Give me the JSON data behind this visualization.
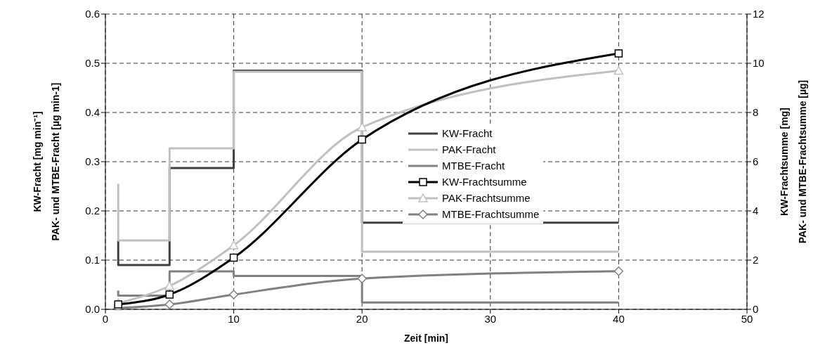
{
  "chart_data": {
    "type": "line",
    "xlabel": "Zeit [min]",
    "ylabel": "KW-Fracht  [mg min⁻¹]\nPAK- und MTBE-Fracht  [µg min-1]",
    "y2label": "KW-Frachtsumme  [mg]\nPAK- und MTBE-Frachtsumme  [µg]",
    "xlim": [
      0,
      50
    ],
    "xticks": [
      0,
      10,
      20,
      30,
      40,
      50
    ],
    "ylim": [
      0,
      0.6
    ],
    "yticks": [
      {
        "value": 0,
        "label": "0.0"
      },
      {
        "value": 0.1,
        "label": "0.1"
      },
      {
        "value": 0.2,
        "label": "0.2"
      },
      {
        "value": 0.3,
        "label": "0.3"
      },
      {
        "value": 0.4,
        "label": "0.4"
      },
      {
        "value": 0.5,
        "label": "0.5"
      },
      {
        "value": 0.6,
        "label": "0.6"
      }
    ],
    "y2lim": [
      0,
      12
    ],
    "y2ticks": [
      0,
      2,
      4,
      6,
      8,
      10,
      12
    ],
    "grid": true,
    "legend": "right",
    "line_style": "solid",
    "series": [
      {
        "name": "KW-Fracht",
        "type": "step",
        "color": "#404040",
        "marker": "none",
        "x": [
          1,
          1,
          5,
          10,
          20,
          40
        ],
        "values": [
          0.14,
          0.09,
          0.287,
          0.485,
          0.176,
          0.176
        ]
      },
      {
        "name": "PAK-Fracht",
        "type": "step",
        "color": "#c0c0c0",
        "marker": "none",
        "x": [
          1,
          1,
          5,
          10,
          20,
          40
        ],
        "values": [
          0.255,
          0.14,
          0.327,
          0.483,
          0.117,
          0.117
        ]
      },
      {
        "name": "MTBE-Fracht",
        "type": "step",
        "color": "#808080",
        "marker": "none",
        "x": [
          1,
          1,
          5,
          10,
          20,
          40
        ],
        "values": [
          0.038,
          0.028,
          0.077,
          0.068,
          0.014,
          0.014
        ]
      },
      {
        "name": "KW-Frachtsumme",
        "type": "line",
        "axis": "y2",
        "color": "#000000",
        "marker": "square",
        "x": [
          1,
          5,
          10,
          20,
          40
        ],
        "values": [
          0.2,
          0.6,
          2.1,
          6.9,
          10.4
        ]
      },
      {
        "name": "PAK-Frachtsumme",
        "type": "line",
        "axis": "y2",
        "color": "#c0c0c0",
        "marker": "triangle",
        "x": [
          1,
          5,
          10,
          20,
          40
        ],
        "values": [
          0.25,
          0.95,
          2.6,
          7.4,
          9.7
        ]
      },
      {
        "name": "MTBE-Frachtsumme",
        "type": "line",
        "axis": "y2",
        "color": "#808080",
        "marker": "diamond",
        "x": [
          1,
          5,
          10,
          20,
          40
        ],
        "values": [
          0.05,
          0.2,
          0.6,
          1.25,
          1.55
        ]
      }
    ]
  }
}
